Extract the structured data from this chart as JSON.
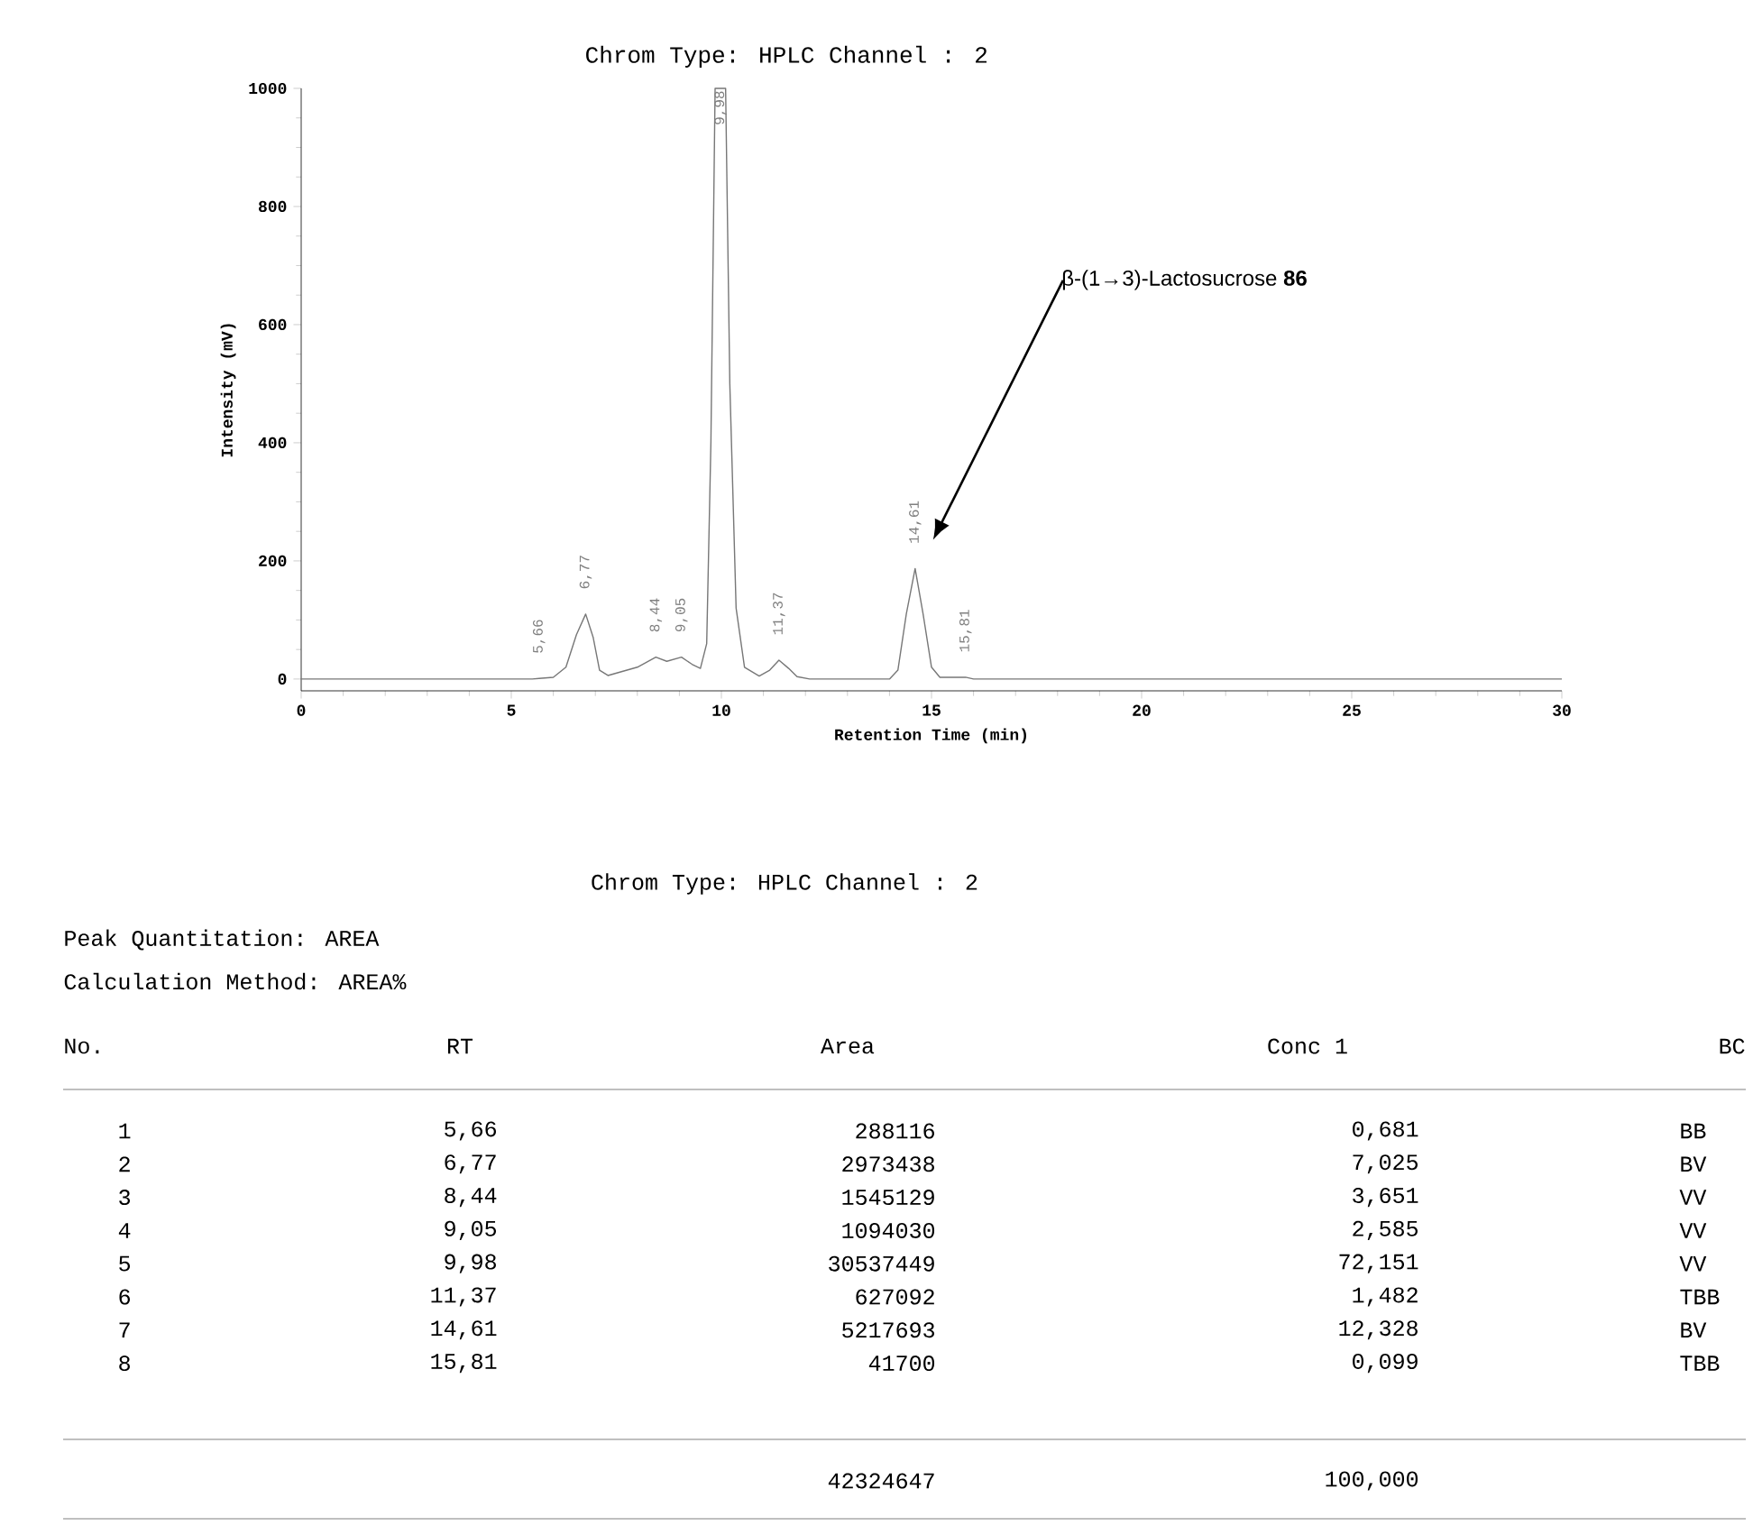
{
  "chart_data": {
    "type": "line",
    "title": "Chrom Type: HPLC Channel : 2",
    "xlabel": "Retention Time (min)",
    "ylabel": "Intensity (mV)",
    "xlim": [
      0,
      30
    ],
    "ylim": [
      -20,
      1000
    ],
    "xticks": [
      0,
      5,
      10,
      15,
      20,
      25,
      30
    ],
    "yticks": [
      0,
      200,
      400,
      600,
      800,
      1000
    ],
    "grid": false,
    "marker": "none",
    "line_style": "solid",
    "series": [
      {
        "color": "#777777",
        "x": [
          0,
          5.5,
          5.66,
          6.0,
          6.3,
          6.55,
          6.77,
          6.95,
          7.1,
          7.3,
          8.0,
          8.44,
          8.7,
          9.05,
          9.3,
          9.5,
          9.65,
          9.75,
          9.85,
          10.1,
          10.2,
          10.35,
          10.55,
          10.9,
          11.15,
          11.37,
          11.6,
          11.8,
          12.1,
          14.0,
          14.2,
          14.4,
          14.61,
          14.8,
          15.0,
          15.2,
          15.81,
          16.0,
          30
        ],
        "values": [
          0,
          0,
          1,
          3,
          20,
          75,
          110,
          70,
          15,
          6,
          20,
          37,
          30,
          37,
          25,
          18,
          60,
          400,
          1000,
          1000,
          500,
          120,
          20,
          5,
          15,
          32,
          18,
          4,
          0,
          0,
          15,
          110,
          187,
          110,
          20,
          3,
          3,
          0,
          0
        ]
      }
    ],
    "annotations": [
      {
        "text": "5,66",
        "x": 5.66,
        "y": 1
      },
      {
        "text": "6,77",
        "x": 6.77,
        "y": 110
      },
      {
        "text": "8,44",
        "x": 8.44,
        "y": 37
      },
      {
        "text": "9,05",
        "x": 9.05,
        "y": 37
      },
      {
        "text": "9,98",
        "x": 9.98,
        "y": 1000
      },
      {
        "text": "11,37",
        "x": 11.37,
        "y": 32
      },
      {
        "text": "14,61",
        "x": 14.61,
        "y": 187
      },
      {
        "text": "15,81",
        "x": 15.81,
        "y": 3
      },
      "β-(1→3)-Lactosucrose **86**",
      "Chrom Type: HPLC Channel : 2",
      "Peak Quantitation: AREA",
      "Calculation Method: AREA%",
      "No.",
      "RT",
      "Area",
      "Conc 1",
      "BC",
      "1",
      "5,66",
      "288116",
      "0,681",
      "BB",
      "2",
      "6,77",
      "2973438",
      "7,025",
      "BV",
      "3",
      "8,44",
      "1545129",
      "3,651",
      "VV",
      "4",
      "9,05",
      "1094030",
      "2,585",
      "VV",
      "5",
      "9,98",
      "30537449",
      "72,151",
      "VV",
      "6",
      "11,37",
      "627092",
      "1,482",
      "TBB",
      "7",
      "14,61",
      "5217693",
      "12,328",
      "BV",
      "8",
      "15,81",
      "41700",
      "0,099",
      "TBB",
      "42324647",
      "100,000"
    ]
  }
}
